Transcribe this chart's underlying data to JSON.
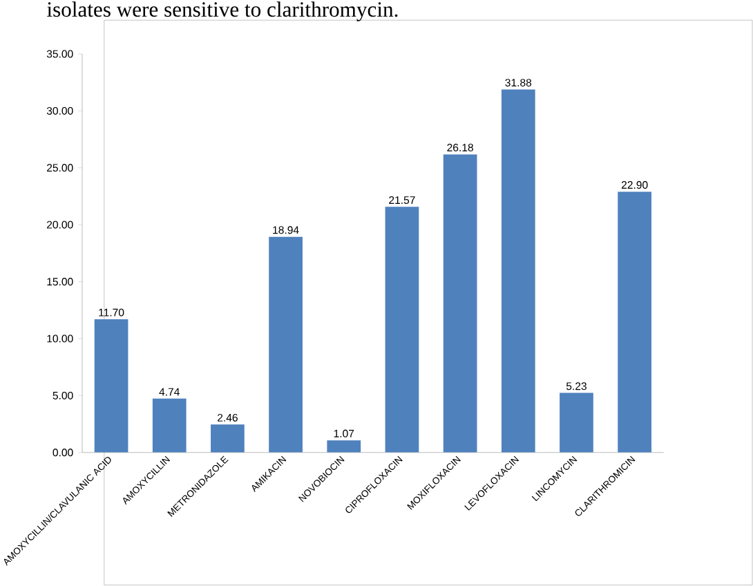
{
  "chart_data": {
    "type": "bar",
    "categories": [
      "AMOXYCILLIN/CLAVULANIC ACID",
      "AMOXYCILLIN",
      "METRONIDAZOLE",
      "AMIKACIN",
      "NOVOBIOCIN",
      "CIPROFLOXACIN",
      "MOXIFLOXACIN",
      "LEVOFLOXACIN",
      "LINCOMYCIN",
      "CLARITHROMICIN"
    ],
    "values": [
      11.7,
      4.74,
      2.46,
      18.94,
      1.07,
      21.57,
      26.18,
      31.88,
      5.23,
      22.9
    ],
    "value_labels": [
      "11.70",
      "4.74",
      "2.46",
      "18.94",
      "1.07",
      "21.57",
      "26.18",
      "31.88",
      "5.23",
      "22.90"
    ],
    "color": "#4f81bd",
    "ylim": [
      0,
      35
    ],
    "yticks": [
      {
        "value": 0,
        "label": "0.00"
      },
      {
        "value": 5,
        "label": "5.00"
      },
      {
        "value": 10,
        "label": "10.00"
      },
      {
        "value": 15,
        "label": "15.00"
      },
      {
        "value": 20,
        "label": "20.00"
      },
      {
        "value": 25,
        "label": "25.00"
      },
      {
        "value": 30,
        "label": "30.00"
      },
      {
        "value": 35,
        "label": "35.00"
      }
    ],
    "grid": false,
    "annotations": [
      "isolates were sensitive to clarithromycin."
    ]
  }
}
